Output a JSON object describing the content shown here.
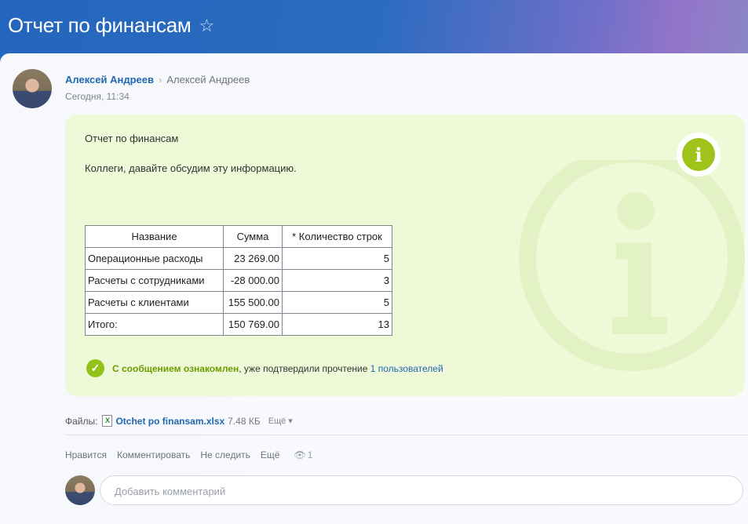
{
  "header": {
    "title": "Отчет по финансам",
    "star_icon": "star-icon"
  },
  "post": {
    "author": "Алексей Андреев",
    "recipient": "Алексей Андреев",
    "time": "Сегодня, 11:34",
    "title": "Отчет по финансам",
    "text": "Коллеги, давайте обсудим эту информацию.",
    "table": {
      "headers": [
        "Название",
        "Сумма",
        "* Количество строк"
      ],
      "rows": [
        [
          "Операционные расходы",
          "23 269.00",
          "5"
        ],
        [
          "Расчеты с сотрудниками",
          "-28 000.00",
          "3"
        ],
        [
          "Расчеты с клиентами",
          "155 500.00",
          "5"
        ],
        [
          "Итого:",
          "150 769.00",
          "13"
        ]
      ]
    },
    "ack": {
      "done": "С сообщением ознакомлен",
      "rest": ", уже подтвердили прочтение ",
      "link": "1 пользователей"
    },
    "accent": "#9fc31a"
  },
  "files": {
    "label": "Файлы:",
    "name": "Otchet po finansam.xlsx",
    "size": "7.48 КБ",
    "more": "Ещё ▾"
  },
  "actions": {
    "like": "Нравится",
    "comment": "Комментировать",
    "unfollow": "Не следить",
    "more": "Ещё",
    "views": "1"
  },
  "comment": {
    "placeholder": "Добавить комментарий"
  }
}
